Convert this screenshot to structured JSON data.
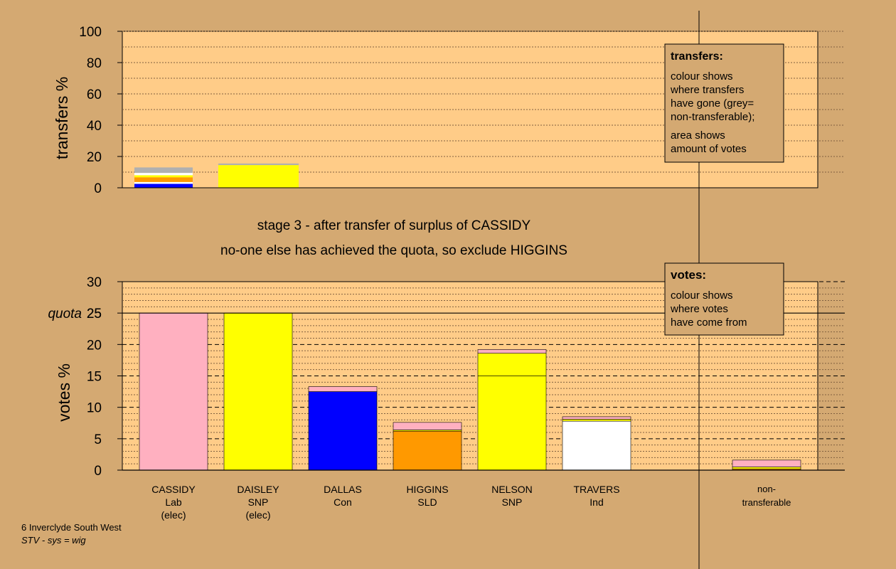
{
  "chart_data": [
    {
      "type": "bar",
      "name": "transfers",
      "ylabel": "transfers %",
      "ylim": [
        0,
        100
      ],
      "yticks": [
        0,
        20,
        40,
        60,
        80,
        100
      ],
      "stacked": true,
      "bars": [
        {
          "segments": [
            {
              "color": "#0000ff",
              "value": 2.5
            },
            {
              "color": "#ffffff",
              "value": 1.2
            },
            {
              "color": "#ff9900",
              "value": 3.0
            },
            {
              "color": "#ffff00",
              "value": 1.3
            },
            {
              "color": "#ffffff",
              "value": 1.5
            },
            {
              "color": "#b0b0b0",
              "value": 3.5
            }
          ]
        },
        {
          "segments": [
            {
              "color": "#ffff00",
              "value": 14.5
            },
            {
              "color": "#b0b0b0",
              "value": 1.0
            }
          ]
        }
      ],
      "legend": {
        "title": "transfers:",
        "lines1": [
          "colour shows",
          "where transfers",
          "have gone (grey=",
          "non-transferable);"
        ],
        "lines2": [
          "area shows",
          "amount of votes"
        ]
      }
    },
    {
      "type": "bar",
      "name": "votes",
      "ylabel": "votes %",
      "ylim": [
        0,
        30
      ],
      "yticks": [
        0,
        5,
        10,
        15,
        20,
        25,
        30
      ],
      "quota": 25,
      "quota_label": "quota",
      "stacked": true,
      "candidates": [
        {
          "name": "CASSIDY",
          "party": "Lab",
          "status": "(elec)",
          "segments": [
            {
              "color": "#ffb0c0",
              "value": 25.0
            }
          ]
        },
        {
          "name": "DAISLEY",
          "party": "SNP",
          "status": "(elec)",
          "segments": [
            {
              "color": "#ffff00",
              "value": 25.0
            }
          ]
        },
        {
          "name": "DALLAS",
          "party": "Con",
          "status": "",
          "segments": [
            {
              "color": "#0000ff",
              "value": 12.5
            },
            {
              "color": "#ffb0c0",
              "value": 0.8
            }
          ]
        },
        {
          "name": "HIGGINS",
          "party": "SLD",
          "status": "",
          "segments": [
            {
              "color": "#ff9900",
              "value": 6.2
            },
            {
              "color": "#ffff00",
              "value": 0.2
            },
            {
              "color": "#ffb0c0",
              "value": 1.2
            }
          ]
        },
        {
          "name": "NELSON",
          "party": "SNP",
          "status": "",
          "segments": [
            {
              "color": "#ffff00",
              "value": 15.0
            },
            {
              "color": "#ffff00",
              "value": 3.6
            },
            {
              "color": "#ffb0c0",
              "value": 0.6
            }
          ]
        },
        {
          "name": "TRAVERS",
          "party": "Ind",
          "status": "",
          "segments": [
            {
              "color": "#ffffff",
              "value": 7.8
            },
            {
              "color": "#ffff00",
              "value": 0.3
            },
            {
              "color": "#ffb0c0",
              "value": 0.4
            }
          ]
        }
      ],
      "nontransferable": {
        "label1": "non-",
        "label2": "transferable",
        "segments": [
          {
            "color": "#ff9900",
            "value": 0.2
          },
          {
            "color": "#ffff00",
            "value": 0.3
          },
          {
            "color": "#ffb0c0",
            "value": 1.1
          }
        ]
      },
      "legend": {
        "title": "votes:",
        "lines": [
          "colour shows",
          "where votes",
          "have come from"
        ]
      }
    }
  ],
  "stage": {
    "line1": "stage 3 - after transfer of surplus of CASSIDY",
    "line2": "no-one else has achieved the quota, so exclude HIGGINS"
  },
  "footer": {
    "ward": "6 Inverclyde South West",
    "system": "STV - sys = wig"
  },
  "colors": {
    "background": "#d4a972",
    "plot_bg": "#ffcc88"
  }
}
